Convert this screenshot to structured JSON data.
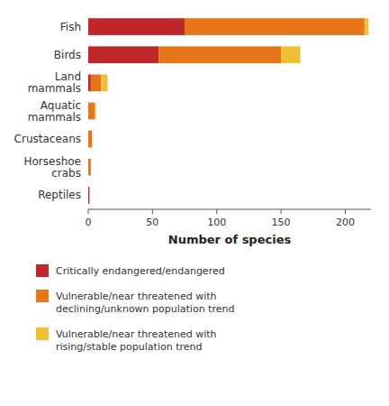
{
  "chart_data": {
    "type": "bar",
    "orientation": "horizontal",
    "stacked": true,
    "categories": [
      "Fish",
      "Birds",
      "Land\nmammals",
      "Aquatic\nmammals",
      "Crustaceans",
      "Horseshoe\ncrabs",
      "Reptiles"
    ],
    "series": [
      {
        "name": "Critically endangered/endangered",
        "color": "#c0262a",
        "values": [
          75,
          55,
          2,
          0,
          0,
          0,
          1
        ]
      },
      {
        "name": "Vulnerable/near threatened with\ndeclining/unknown population trend",
        "color": "#e8751a",
        "values": [
          140,
          95,
          8,
          5,
          3,
          2,
          0
        ]
      },
      {
        "name": "Vulnerable/near threatened with\nrising/stable population trend",
        "color": "#f0c030",
        "values": [
          3,
          15,
          5,
          1,
          0,
          0,
          0
        ]
      }
    ],
    "x_label": "Number of species",
    "xlim": [
      0,
      220
    ],
    "xticks": [
      0,
      50,
      100,
      150,
      200
    ],
    "grid": false,
    "legend": "bottom"
  }
}
